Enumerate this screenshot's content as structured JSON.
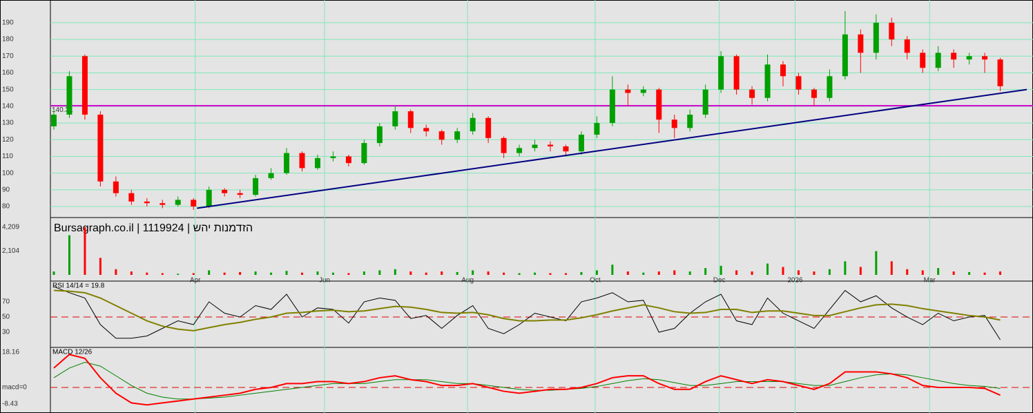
{
  "chart_data": [
    {
      "type": "candlestick",
      "title": "Bursagraph.co.il | 1119924 | הזדמנות יהש",
      "x": [
        1,
        5.5,
        10,
        14.5,
        19,
        23.5,
        28,
        32.5,
        37,
        41.5,
        46,
        50.5,
        55,
        59.5,
        64,
        68.5,
        73,
        77.5,
        82,
        86.5,
        91,
        95.5,
        100,
        104.5,
        109,
        113.5,
        118,
        122.5,
        127,
        131.5,
        136,
        140.5,
        145,
        149.5,
        154,
        158.5,
        163,
        167.5,
        172,
        176.5,
        181,
        185.5,
        190,
        194.5,
        199,
        203.5,
        208,
        212.5,
        217,
        221.5,
        226,
        230.5,
        235,
        239.5,
        244,
        248.5,
        253,
        257.5,
        262,
        266.5,
        271,
        275.5
      ],
      "open": [
        128,
        135,
        170,
        135,
        95,
        88,
        83,
        82,
        81,
        84,
        80,
        90,
        88,
        87,
        97,
        100,
        112,
        103,
        109,
        110,
        106,
        118,
        128,
        137,
        127,
        125,
        120,
        125,
        133,
        121,
        112,
        115,
        117,
        116,
        113,
        123,
        130,
        150,
        148,
        150,
        132,
        127,
        135,
        150,
        170,
        150,
        145,
        165,
        158,
        150,
        145,
        158,
        183,
        172,
        190,
        180,
        172,
        163,
        172,
        168,
        170,
        168
      ],
      "high": [
        138,
        161,
        171,
        137,
        98,
        90,
        85,
        84,
        86,
        85,
        92,
        91,
        90,
        99,
        103,
        115,
        113,
        111,
        113,
        111,
        120,
        130,
        140,
        138,
        129,
        126,
        127,
        136,
        134,
        122,
        117,
        120,
        119,
        117,
        125,
        134,
        158,
        153,
        152,
        151,
        135,
        138,
        153,
        173,
        171,
        152,
        171,
        167,
        160,
        151,
        162,
        197,
        186,
        195,
        193,
        182,
        174,
        176,
        174,
        172,
        172,
        169
      ],
      "low": [
        126,
        133,
        132,
        92,
        86,
        81,
        80,
        79,
        80,
        78,
        79,
        86,
        85,
        86,
        96,
        99,
        101,
        102,
        107,
        104,
        105,
        116,
        126,
        124,
        122,
        117,
        118,
        123,
        118,
        109,
        110,
        113,
        113,
        110,
        111,
        121,
        128,
        140,
        146,
        124,
        121,
        125,
        133,
        148,
        147,
        141,
        143,
        152,
        147,
        140,
        143,
        156,
        160,
        168,
        176,
        168,
        160,
        161,
        163,
        165,
        160,
        149
      ],
      "close": [
        135,
        158,
        135,
        95,
        88,
        83,
        82,
        81,
        84,
        80,
        90,
        88,
        87,
        97,
        100,
        112,
        103,
        109,
        110,
        106,
        118,
        128,
        137,
        127,
        125,
        120,
        125,
        133,
        121,
        112,
        115,
        117,
        116,
        113,
        123,
        130,
        150,
        148,
        150,
        132,
        127,
        135,
        150,
        170,
        150,
        145,
        165,
        158,
        150,
        145,
        158,
        183,
        172,
        190,
        180,
        172,
        163,
        172,
        168,
        170,
        168,
        152
      ],
      "up_color": "#00a000",
      "down_color": "#ff0000",
      "xlim": [
        0,
        285
      ],
      "xticks": [
        {
          "value": 42,
          "label": "Apr"
        },
        {
          "value": 79.5,
          "label": "Jun"
        },
        {
          "value": 121,
          "label": "Aug"
        },
        {
          "value": 158,
          "label": "Oct"
        },
        {
          "value": 194,
          "label": "Dec"
        },
        {
          "value": 216,
          "label": "2026"
        },
        {
          "value": 255,
          "label": "Mar"
        }
      ],
      "ylim": [
        73.4,
        203.6
      ],
      "yticks": [
        80,
        90,
        100,
        110,
        120,
        130,
        140,
        150,
        160,
        170,
        180,
        190
      ],
      "grid": true,
      "hline": {
        "value": 140.31,
        "color": "#cc00cc"
      },
      "trendline": {
        "x": [
          42.5,
          283.2
        ],
        "y": [
          79,
          150
        ],
        "color": "#000080"
      }
    },
    {
      "type": "bar",
      "x": [
        1,
        5.5,
        10,
        14.5,
        19,
        23.5,
        28,
        32.5,
        37,
        41.5,
        46,
        50.5,
        55,
        59.5,
        64,
        68.5,
        73,
        77.5,
        82,
        86.5,
        91,
        95.5,
        100,
        104.5,
        109,
        113.5,
        118,
        122.5,
        127,
        131.5,
        136,
        140.5,
        145,
        149.5,
        154,
        158.5,
        163,
        167.5,
        172,
        176.5,
        181,
        185.5,
        190,
        194.5,
        199,
        203.5,
        208,
        212.5,
        217,
        221.5,
        226,
        230.5,
        235,
        239.5,
        244,
        248.5,
        253,
        257.5,
        262,
        266.5,
        271,
        275.5
      ],
      "values": [
        300,
        3500,
        4200,
        1500,
        500,
        300,
        200,
        150,
        100,
        150,
        400,
        200,
        250,
        300,
        200,
        350,
        200,
        300,
        200,
        150,
        300,
        400,
        500,
        300,
        200,
        300,
        250,
        400,
        300,
        200,
        150,
        200,
        150,
        150,
        250,
        400,
        900,
        300,
        200,
        300,
        400,
        300,
        600,
        800,
        400,
        300,
        1000,
        700,
        400,
        300,
        500,
        1200,
        700,
        2100,
        1200,
        500,
        400,
        600,
        300,
        250,
        200,
        300
      ],
      "xlim": [
        0,
        285
      ],
      "ylim": [
        0,
        5000
      ],
      "yticks": [
        {
          "value": 4209,
          "label": "4,209"
        },
        {
          "value": 2104,
          "label": "2,104"
        }
      ]
    },
    {
      "type": "line",
      "label": "RSI 14/14 = 19.8",
      "x": [
        1,
        5.5,
        10,
        14.5,
        19,
        23.5,
        28,
        32.5,
        37,
        41.5,
        46,
        50.5,
        55,
        59.5,
        64,
        68.5,
        73,
        77.5,
        82,
        86.5,
        91,
        95.5,
        100,
        104.5,
        109,
        113.5,
        118,
        122.5,
        127,
        131.5,
        136,
        140.5,
        145,
        149.5,
        154,
        158.5,
        163,
        167.5,
        172,
        176.5,
        181,
        185.5,
        190,
        194.5,
        199,
        203.5,
        208,
        212.5,
        217,
        221.5,
        226,
        230.5,
        235,
        239.5,
        244,
        248.5,
        253,
        257.5,
        262,
        266.5,
        271,
        275.5
      ],
      "series": [
        {
          "color": "#000000",
          "values": [
            90,
            82,
            75,
            40,
            22,
            22,
            25,
            35,
            45,
            40,
            70,
            55,
            50,
            65,
            60,
            80,
            50,
            62,
            60,
            42,
            70,
            75,
            72,
            48,
            52,
            35,
            52,
            65,
            35,
            28,
            40,
            55,
            50,
            45,
            70,
            75,
            82,
            70,
            72,
            30,
            35,
            55,
            70,
            80,
            45,
            40,
            75,
            55,
            45,
            35,
            60,
            85,
            70,
            78,
            62,
            50,
            40,
            55,
            45,
            50,
            52,
            20
          ]
        },
        {
          "color": "#808000",
          "values": [
            85,
            84,
            82,
            75,
            65,
            55,
            45,
            38,
            34,
            32,
            36,
            40,
            43,
            47,
            50,
            55,
            56,
            58,
            59,
            57,
            58,
            61,
            64,
            63,
            60,
            56,
            55,
            56,
            53,
            48,
            45,
            45,
            46,
            46,
            49,
            53,
            58,
            62,
            66,
            62,
            57,
            55,
            56,
            60,
            60,
            56,
            58,
            58,
            55,
            52,
            52,
            57,
            62,
            66,
            67,
            65,
            61,
            58,
            55,
            52,
            50,
            46
          ]
        }
      ],
      "xlim": [
        0,
        285
      ],
      "ylim": [
        10,
        96.4
      ],
      "yticks": [
        30,
        50,
        70
      ],
      "refline": 50
    },
    {
      "type": "line",
      "label": "MACD 12/26",
      "x": [
        1,
        5.5,
        10,
        14.5,
        19,
        23.5,
        28,
        32.5,
        37,
        41.5,
        46,
        50.5,
        55,
        59.5,
        64,
        68.5,
        73,
        77.5,
        82,
        86.5,
        91,
        95.5,
        100,
        104.5,
        109,
        113.5,
        118,
        122.5,
        127,
        131.5,
        136,
        140.5,
        145,
        149.5,
        154,
        158.5,
        163,
        167.5,
        172,
        176.5,
        181,
        185.5,
        190,
        194.5,
        199,
        203.5,
        208,
        212.5,
        217,
        221.5,
        226,
        230.5,
        235,
        239.5,
        244,
        248.5,
        253,
        257.5,
        262,
        266.5,
        271,
        275.5
      ],
      "series": [
        {
          "color": "#008000",
          "values": [
            5,
            10,
            13,
            11,
            6,
            1,
            -3,
            -5,
            -6,
            -6,
            -5.5,
            -5,
            -4,
            -3,
            -2,
            -1,
            0,
            1,
            2,
            2,
            2,
            3,
            4,
            4,
            4,
            3,
            2,
            2,
            1,
            0,
            -1,
            -1.5,
            -1.5,
            -1,
            -0.5,
            0.5,
            2,
            3.5,
            4.5,
            4,
            2.5,
            1,
            1,
            2,
            3,
            3,
            3,
            3,
            2,
            1,
            1,
            3,
            5,
            6.5,
            7,
            6.5,
            5,
            3.5,
            2,
            1,
            0.5,
            -0.5
          ]
        },
        {
          "color": "#ff0000",
          "values": [
            10,
            17,
            15,
            5,
            -3,
            -8,
            -9,
            -8,
            -7,
            -6,
            -5,
            -4,
            -3,
            -1,
            0,
            2,
            2,
            3,
            3,
            2,
            3,
            5,
            6,
            4,
            3,
            1,
            1,
            2,
            0,
            -2,
            -3,
            -2,
            -1,
            -1,
            0,
            2,
            5,
            6,
            6,
            2,
            -1,
            -1,
            3,
            6,
            4,
            2,
            4,
            3,
            1,
            -1,
            2,
            8,
            8,
            8,
            7,
            5,
            1,
            0,
            0,
            0,
            -0.5,
            -4
          ]
        }
      ],
      "xlim": [
        0,
        285
      ],
      "ylim": [
        -13.2,
        20.3
      ],
      "yticks": [
        18.16,
        {
          "value": 0,
          "label": "macd=0"
        },
        -8.43
      ],
      "refline": 0
    }
  ]
}
